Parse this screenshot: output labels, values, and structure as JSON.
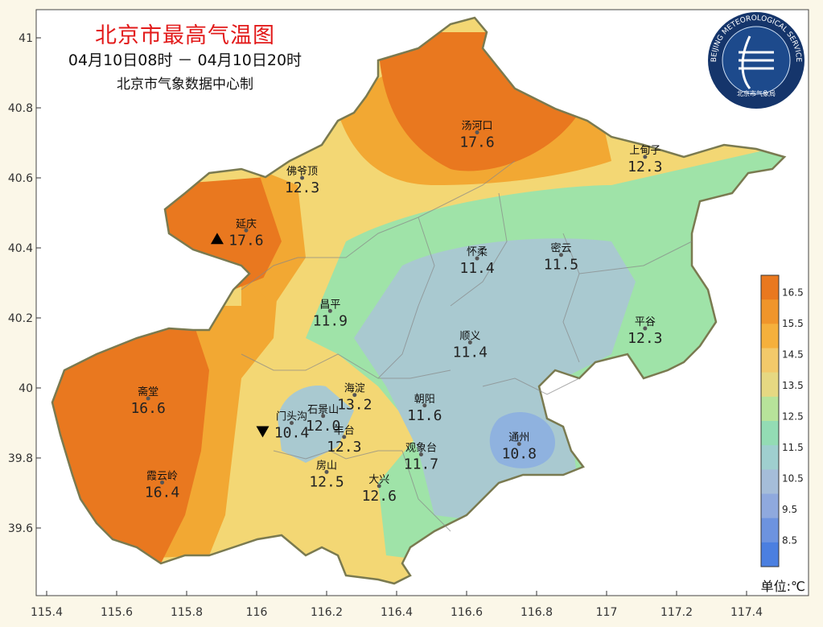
{
  "header": {
    "title": "北京市最高气温图",
    "subtitle": "04月10日08时 － 04月10日20时",
    "credit": "北京市气象数据中心制"
  },
  "logo": {
    "ring_text": "BEIJING METEOROLOGICAL SERVICE",
    "inner_text": "北京市气象局"
  },
  "axes": {
    "x_ticks": [
      "115.4",
      "115.6",
      "115.8",
      "116",
      "116.2",
      "116.4",
      "116.6",
      "116.8",
      "117",
      "117.2",
      "117.4"
    ],
    "y_ticks": [
      "41",
      "40.8",
      "40.6",
      "40.4",
      "40.2",
      "40",
      "39.8",
      "39.6"
    ]
  },
  "stations": [
    {
      "name": "汤河口",
      "value": "17.6",
      "lon": 116.63,
      "lat": 40.73
    },
    {
      "name": "上甸子",
      "value": "12.3",
      "lon": 117.11,
      "lat": 40.66
    },
    {
      "name": "佛爷顶",
      "value": "12.3",
      "lon": 116.13,
      "lat": 40.6
    },
    {
      "name": "延庆",
      "value": "17.6",
      "lon": 115.97,
      "lat": 40.45,
      "marker": "max"
    },
    {
      "name": "怀柔",
      "value": "11.4",
      "lon": 116.63,
      "lat": 40.37
    },
    {
      "name": "密云",
      "value": "11.5",
      "lon": 116.87,
      "lat": 40.38
    },
    {
      "name": "昌平",
      "value": "11.9",
      "lon": 116.21,
      "lat": 40.22
    },
    {
      "name": "平谷",
      "value": "12.3",
      "lon": 117.11,
      "lat": 40.17
    },
    {
      "name": "顺义",
      "value": "11.4",
      "lon": 116.61,
      "lat": 40.13
    },
    {
      "name": "斋堂",
      "value": "16.6",
      "lon": 115.69,
      "lat": 39.97
    },
    {
      "name": "海淀",
      "value": "13.2",
      "lon": 116.28,
      "lat": 39.98
    },
    {
      "name": "朝阳",
      "value": "11.6",
      "lon": 116.48,
      "lat": 39.95
    },
    {
      "name": "石景山",
      "value": "12.0",
      "lon": 116.19,
      "lat": 39.92
    },
    {
      "name": "门头沟",
      "value": "10.4",
      "lon": 116.1,
      "lat": 39.9,
      "marker": "min"
    },
    {
      "name": "丰台",
      "value": "12.3",
      "lon": 116.25,
      "lat": 39.86
    },
    {
      "name": "通州",
      "value": "10.8",
      "lon": 116.75,
      "lat": 39.84
    },
    {
      "name": "观象台",
      "value": "11.7",
      "lon": 116.47,
      "lat": 39.81
    },
    {
      "name": "房山",
      "value": "12.5",
      "lon": 116.2,
      "lat": 39.76
    },
    {
      "name": "霞云岭",
      "value": "16.4",
      "lon": 115.73,
      "lat": 39.73
    },
    {
      "name": "大兴",
      "value": "12.6",
      "lon": 116.35,
      "lat": 39.72
    }
  ],
  "colorbar": {
    "labels": [
      "16.5",
      "15.5",
      "14.5",
      "13.5",
      "12.5",
      "11.5",
      "10.5",
      "9.5",
      "8.5"
    ],
    "colors": [
      "#e9781f",
      "#f0952b",
      "#f5b03c",
      "#f2c96a",
      "#e6d882",
      "#b7e39a",
      "#93dcb4",
      "#9fcfcf",
      "#a5bdd9",
      "#8fa9de",
      "#6d93df",
      "#4b7fe0"
    ],
    "unit": "单位:℃"
  },
  "palette": {
    "hot": "#e9781f",
    "warm": "#f2a833",
    "mild": "#f3d774",
    "green": "#9fe3a8",
    "cool": "#a9c9d0",
    "cold": "#8fb2df",
    "boundary": "#7a7a50",
    "title_red": "#e21a1a"
  }
}
